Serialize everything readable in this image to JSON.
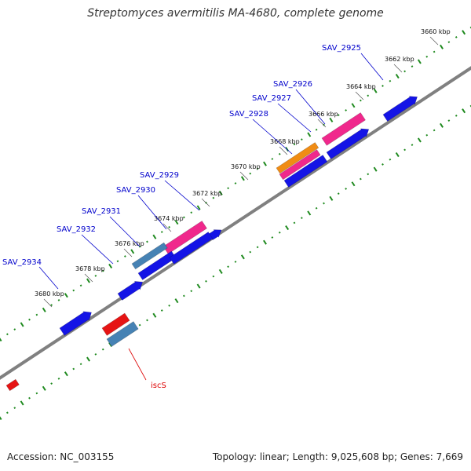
{
  "title": "Streptomyces avermitilis MA-4680, complete genome",
  "footer": {
    "accession": "Accession: NC_003155",
    "summary": "Topology: linear; Length: 9,025,608 bp; Genes: 7,669"
  },
  "colors": {
    "backbone": "#808080",
    "tick_dots": "#1f8a1f",
    "label_forward": "#0000cc",
    "label_reverse": "#dd0000",
    "gene_blue": "#1414e6",
    "gene_pink": "#f0288c",
    "gene_orange": "#f08c14",
    "gene_steel": "#4682b4",
    "gene_red": "#e61414"
  },
  "scale_labels": [
    "3660 kbp",
    "3662 kbp",
    "3664 kbp",
    "3666 kbp",
    "3668 kbp",
    "3670 kbp",
    "3672 kbp",
    "3674 kbp",
    "3676 kbp",
    "3678 kbp",
    "3680 kbp"
  ],
  "gene_labels": [
    {
      "text": "SAV_2925",
      "strand": "forward"
    },
    {
      "text": "SAV_2926",
      "strand": "forward"
    },
    {
      "text": "SAV_2927",
      "strand": "forward"
    },
    {
      "text": "SAV_2928",
      "strand": "forward"
    },
    {
      "text": "SAV_2929",
      "strand": "forward"
    },
    {
      "text": "SAV_2930",
      "strand": "forward"
    },
    {
      "text": "SAV_2931",
      "strand": "forward"
    },
    {
      "text": "SAV_2932",
      "strand": "forward"
    },
    {
      "text": "SAV_2934",
      "strand": "forward"
    },
    {
      "text": "iscS",
      "strand": "reverse"
    }
  ]
}
